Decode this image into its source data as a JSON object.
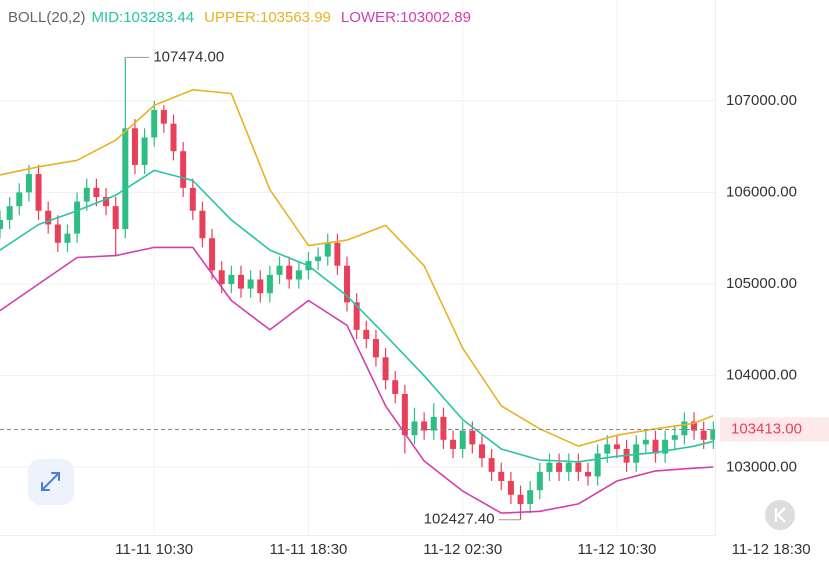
{
  "chart_data": {
    "type": "candlestick",
    "indicator": "BOLL(20,2)",
    "x": [
      "11-11 02:30",
      "11-11 03:00",
      "11-11 03:30",
      "11-11 04:00",
      "11-11 04:30",
      "11-11 05:00",
      "11-11 05:30",
      "11-11 06:00",
      "11-11 06:30",
      "11-11 07:00",
      "11-11 07:30",
      "11-11 08:00",
      "11-11 08:30",
      "11-11 09:00",
      "11-11 09:30",
      "11-11 10:00",
      "11-11 10:30",
      "11-11 11:00",
      "11-11 11:30",
      "11-11 12:00",
      "11-11 12:30",
      "11-11 13:00",
      "11-11 13:30",
      "11-11 14:00",
      "11-11 14:30",
      "11-11 15:00",
      "11-11 15:30",
      "11-11 16:00",
      "11-11 16:30",
      "11-11 17:00",
      "11-11 17:30",
      "11-11 18:00",
      "11-11 18:30",
      "11-11 19:00",
      "11-11 19:30",
      "11-11 20:00",
      "11-11 20:30",
      "11-11 21:00",
      "11-11 21:30",
      "11-11 22:00",
      "11-11 22:30",
      "11-11 23:00",
      "11-11 23:30",
      "11-12 00:00",
      "11-12 00:30",
      "11-12 01:00",
      "11-12 01:30",
      "11-12 02:00",
      "11-12 02:30",
      "11-12 03:00",
      "11-12 03:30",
      "11-12 04:00",
      "11-12 04:30",
      "11-12 05:00",
      "11-12 05:30",
      "11-12 06:00",
      "11-12 06:30",
      "11-12 07:00",
      "11-12 07:30",
      "11-12 08:00",
      "11-12 08:30",
      "11-12 09:00",
      "11-12 09:30",
      "11-12 10:00",
      "11-12 10:30",
      "11-12 11:00",
      "11-12 11:30",
      "11-12 12:00",
      "11-12 12:30",
      "11-12 13:00",
      "11-12 13:30",
      "11-12 14:00",
      "11-12 14:30",
      "11-12 15:00",
      "11-12 15:30"
    ],
    "open": [
      105600,
      105700,
      105850,
      106000,
      106200,
      105800,
      105650,
      105450,
      105550,
      105900,
      106050,
      105950,
      105850,
      105600,
      106700,
      106300,
      106600,
      106900,
      106750,
      106450,
      106050,
      105800,
      105500,
      105150,
      105000,
      105100,
      104950,
      105050,
      104900,
      105100,
      105200,
      105050,
      105150,
      105250,
      105300,
      105450,
      105200,
      104800,
      104500,
      104400,
      104200,
      103950,
      103800,
      103350,
      103500,
      103400,
      103550,
      103300,
      103200,
      103400,
      103250,
      103100,
      102950,
      102850,
      102700,
      102600,
      102750,
      102950,
      103050,
      102950,
      103050,
      102950,
      102900,
      103150,
      103250,
      103200,
      103050,
      103250,
      103300,
      103150,
      103300,
      103350,
      103500,
      103400,
      103300
    ],
    "high": [
      105800,
      105950,
      106100,
      106300,
      106300,
      105900,
      105750,
      105650,
      106000,
      106150,
      106150,
      106050,
      105950,
      107474,
      106800,
      106700,
      107000,
      106950,
      106850,
      106550,
      106150,
      105900,
      105600,
      105250,
      105200,
      105200,
      105150,
      105150,
      105200,
      105300,
      105300,
      105250,
      105350,
      105400,
      105550,
      105550,
      105300,
      104900,
      104600,
      104500,
      104300,
      104050,
      103900,
      103650,
      103600,
      103700,
      103650,
      103400,
      103500,
      103500,
      103350,
      103200,
      103050,
      102950,
      102800,
      102850,
      103050,
      103150,
      103150,
      103150,
      103150,
      103050,
      103250,
      103350,
      103350,
      103300,
      103350,
      103400,
      103400,
      103400,
      103450,
      103600,
      103600,
      103500,
      103500
    ],
    "low": [
      105500,
      105600,
      105750,
      105900,
      105700,
      105550,
      105350,
      105350,
      105450,
      105800,
      105850,
      105750,
      105300,
      105500,
      106200,
      106200,
      106500,
      106650,
      106350,
      105950,
      105700,
      105400,
      105050,
      104900,
      104900,
      104850,
      104850,
      104800,
      104800,
      105000,
      104950,
      104950,
      105050,
      105150,
      105200,
      105100,
      104700,
      104400,
      104300,
      104100,
      103850,
      103700,
      103150,
      103250,
      103300,
      103300,
      103200,
      103100,
      103100,
      103150,
      103000,
      102850,
      102750,
      102600,
      102427.4,
      102500,
      102650,
      102850,
      102850,
      102850,
      102850,
      102800,
      102800,
      103050,
      103100,
      102950,
      102950,
      103150,
      103050,
      103050,
      103200,
      103250,
      103300,
      103200,
      103200
    ],
    "close": [
      105700,
      105850,
      106000,
      106200,
      105800,
      105650,
      105450,
      105550,
      105900,
      106050,
      105950,
      105850,
      105600,
      106700,
      106300,
      106600,
      106900,
      106750,
      106450,
      106050,
      105800,
      105500,
      105150,
      105000,
      105100,
      104950,
      105050,
      104900,
      105100,
      105200,
      105050,
      105150,
      105250,
      105300,
      105450,
      105200,
      104800,
      104500,
      104400,
      104200,
      103950,
      103800,
      103350,
      103500,
      103400,
      103550,
      103300,
      103200,
      103400,
      103250,
      103100,
      102950,
      102850,
      102700,
      102600,
      102750,
      102950,
      103050,
      102950,
      103050,
      102950,
      102900,
      103150,
      103250,
      103200,
      103050,
      103250,
      103300,
      103150,
      103300,
      103350,
      103500,
      103400,
      103300,
      103413
    ],
    "up_color": "#2ebd85",
    "down_color": "#e8405a",
    "bands": [
      {
        "name": "MID:103283.44",
        "color": "#2ac4a2",
        "x": [
          "11-11 02:30",
          "11-11 04:30",
          "11-11 06:30",
          "11-11 08:30",
          "11-11 10:30",
          "11-11 12:30",
          "11-11 14:30",
          "11-11 16:30",
          "11-11 18:30",
          "11-11 20:30",
          "11-11 22:30",
          "11-12 00:30",
          "11-12 02:30",
          "11-12 04:30",
          "11-12 06:30",
          "11-12 08:30",
          "11-12 10:30",
          "11-12 12:30",
          "11-12 14:30",
          "11-12 15:30"
        ],
        "values": [
          105370,
          105650,
          105800,
          105970,
          106240,
          106130,
          105700,
          105370,
          105200,
          104870,
          104440,
          104000,
          103520,
          103200,
          103080,
          103060,
          103120,
          103160,
          103230,
          103283.44
        ]
      },
      {
        "name": "UPPER:103563.99",
        "color": "#eab124",
        "x": [
          "11-11 02:30",
          "11-11 04:30",
          "11-11 06:30",
          "11-11 08:30",
          "11-11 10:30",
          "11-11 12:30",
          "11-11 14:30",
          "11-11 16:30",
          "11-11 18:30",
          "11-11 20:30",
          "11-11 22:30",
          "11-12 00:30",
          "11-12 02:30",
          "11-12 04:30",
          "11-12 06:30",
          "11-12 08:30",
          "11-12 10:30",
          "11-12 12:30",
          "11-12 14:30",
          "11-12 15:30"
        ],
        "values": [
          106190,
          106280,
          106350,
          106570,
          106950,
          107120,
          107080,
          106030,
          105420,
          105480,
          105640,
          105200,
          104300,
          103670,
          103420,
          103230,
          103350,
          103420,
          103480,
          103563.99
        ]
      },
      {
        "name": "LOWER:103002.89",
        "color": "#d23fae",
        "x": [
          "11-11 02:30",
          "11-11 04:30",
          "11-11 06:30",
          "11-11 08:30",
          "11-11 10:30",
          "11-11 12:30",
          "11-11 14:30",
          "11-11 16:30",
          "11-11 18:30",
          "11-11 20:30",
          "11-11 22:30",
          "11-12 00:30",
          "11-12 02:30",
          "11-12 04:30",
          "11-12 06:30",
          "11-12 08:30",
          "11-12 10:30",
          "11-12 12:30",
          "11-12 14:30",
          "11-12 15:30"
        ],
        "values": [
          104710,
          105000,
          105290,
          105310,
          105400,
          105400,
          104820,
          104500,
          104820,
          104550,
          103670,
          103070,
          102740,
          102500,
          102520,
          102600,
          102850,
          102960,
          102990,
          103002.89
        ]
      }
    ],
    "max_label": {
      "value": 107474,
      "label": "107474.00"
    },
    "min_label": {
      "value": 102427.4,
      "label": "102427.40"
    },
    "last_price": {
      "value": 103413,
      "label": "103413.00"
    },
    "xlim": [
      "11-11 02:30",
      "11-12 21:30"
    ],
    "xticks": [
      "11-11 10:30",
      "11-11 18:30",
      "11-12 02:30",
      "11-12 10:30",
      "11-12 18:30"
    ],
    "ylim": [
      102250,
      108100
    ],
    "yticks": [
      {
        "value": 103000,
        "label": "103000.00"
      },
      {
        "value": 104000,
        "label": "104000.00"
      },
      {
        "value": 105000,
        "label": "105000.00"
      },
      {
        "value": 106000,
        "label": "106000.00"
      },
      {
        "value": 107000,
        "label": "107000.00"
      }
    ],
    "grid": true
  }
}
